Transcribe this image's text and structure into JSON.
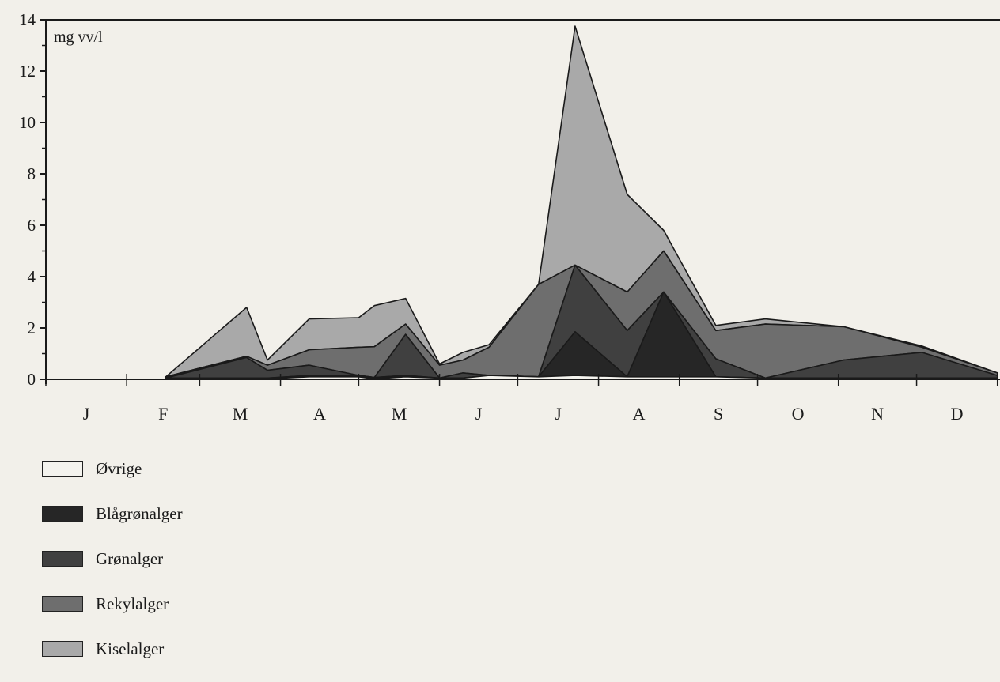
{
  "chart_data": {
    "type": "area",
    "stacked": true,
    "unit_label": "mg vv/l",
    "ylim": [
      0,
      14
    ],
    "yticks": [
      "0",
      "2",
      "4",
      "6",
      "8",
      "10",
      "12",
      "14"
    ],
    "month_labels": [
      "J",
      "F",
      "M",
      "A",
      "M",
      "J",
      "J",
      "A",
      "S",
      "O",
      "N",
      "D"
    ],
    "x_unit": "day of year",
    "xlim": [
      0,
      366
    ],
    "x": [
      46,
      77,
      85,
      101,
      120,
      126,
      138,
      151,
      160,
      170,
      189,
      203,
      223,
      237,
      257,
      276,
      306,
      336,
      365
    ],
    "series": [
      {
        "name": "Øvrige",
        "color": "#f4f3ee",
        "values": [
          0.03,
          0.02,
          0.02,
          0.1,
          0.1,
          0.02,
          0.1,
          0.05,
          0.05,
          0.15,
          0.1,
          0.15,
          0.1,
          0.1,
          0.1,
          0.05,
          0.05,
          0.05,
          0.05
        ]
      },
      {
        "name": "Blågrønalger",
        "color": "#262626",
        "values": [
          0.02,
          0.03,
          0.03,
          0.05,
          0.05,
          0.05,
          0.05,
          0.0,
          0.0,
          0.0,
          0.0,
          1.7,
          0.0,
          3.3,
          0.0,
          0.0,
          0.0,
          0.0,
          0.0
        ]
      },
      {
        "name": "Grønalger",
        "color": "#404040",
        "values": [
          0.0,
          0.8,
          0.3,
          0.4,
          0.0,
          0.0,
          1.6,
          0.0,
          0.2,
          0.0,
          0.0,
          2.6,
          1.8,
          0.0,
          0.7,
          0.0,
          0.7,
          1.0,
          0.1
        ]
      },
      {
        "name": "Rekylalger",
        "color": "#6e6e6e",
        "values": [
          0.05,
          0.05,
          0.2,
          0.6,
          1.1,
          1.2,
          0.4,
          0.5,
          0.5,
          1.1,
          3.6,
          0.0,
          1.5,
          1.6,
          1.1,
          2.1,
          1.3,
          0.2,
          0.1
        ]
      },
      {
        "name": "Kiselalger",
        "color": "#a9a9a9",
        "values": [
          0.0,
          1.9,
          0.2,
          1.2,
          1.15,
          1.6,
          1.0,
          0.05,
          0.3,
          0.1,
          0.0,
          9.3,
          3.8,
          0.8,
          0.2,
          0.2,
          0.0,
          0.05,
          0.0
        ]
      }
    ],
    "legend_position": "bottom-left",
    "grid": false
  }
}
